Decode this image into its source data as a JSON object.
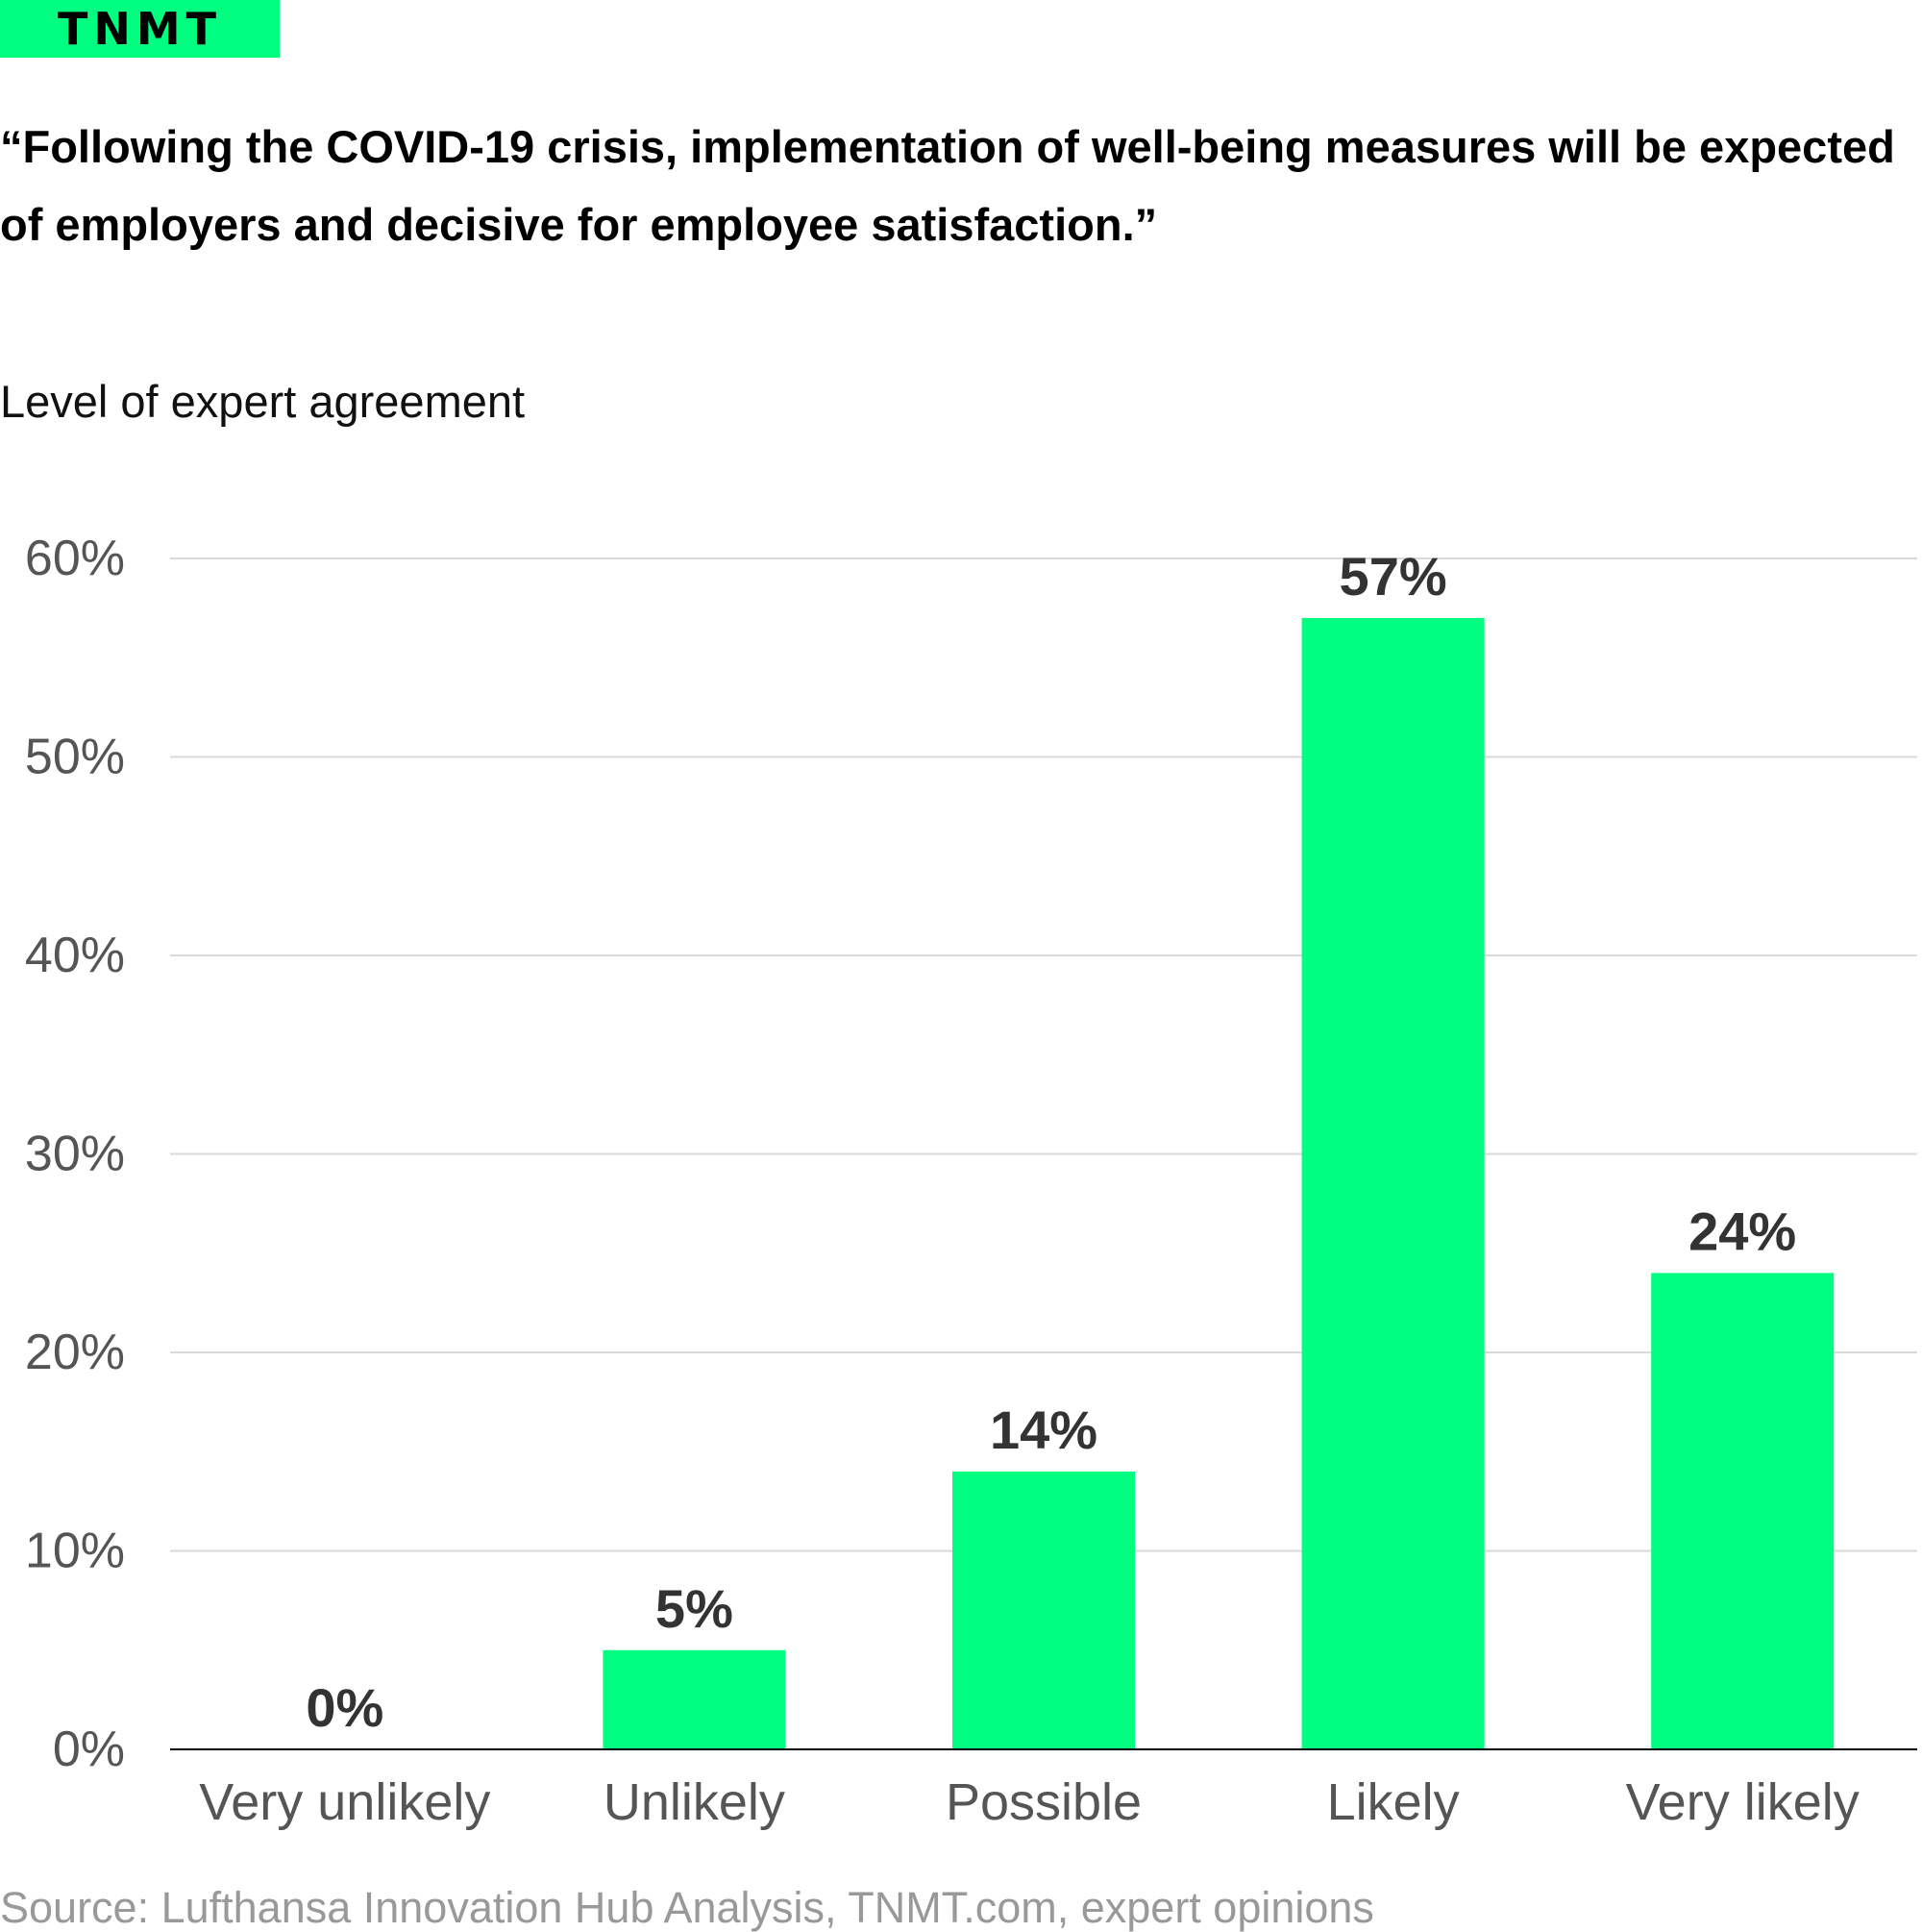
{
  "brand": {
    "logo_text": "TNMT",
    "accent_color": "#00FF80"
  },
  "title": "“Following the COVID-19 crisis, implementation of well-being measures will be expected of employers and decisive for employee satisfaction.”",
  "subtitle": "Level of expert agreement",
  "source": "Source: Lufthansa Innovation Hub Analysis, TNMT.com, expert opinions",
  "chart_data": {
    "type": "bar",
    "categories": [
      "Very unlikely",
      "Unlikely",
      "Possible",
      "Likely",
      "Very likely"
    ],
    "values": [
      0,
      5,
      14,
      57,
      24
    ],
    "value_labels": [
      "0%",
      "5%",
      "14%",
      "57%",
      "24%"
    ],
    "ylim": [
      0,
      60
    ],
    "yticks": [
      0,
      10,
      20,
      30,
      40,
      50,
      60
    ],
    "ytick_labels": [
      "0%",
      "10%",
      "20%",
      "30%",
      "40%",
      "50%",
      "60%"
    ],
    "grid": true,
    "bar_color": "#00FF80",
    "gridline_color": "#D9D9D9",
    "tick_label_color": "#555555",
    "value_label_color": "#333333"
  }
}
